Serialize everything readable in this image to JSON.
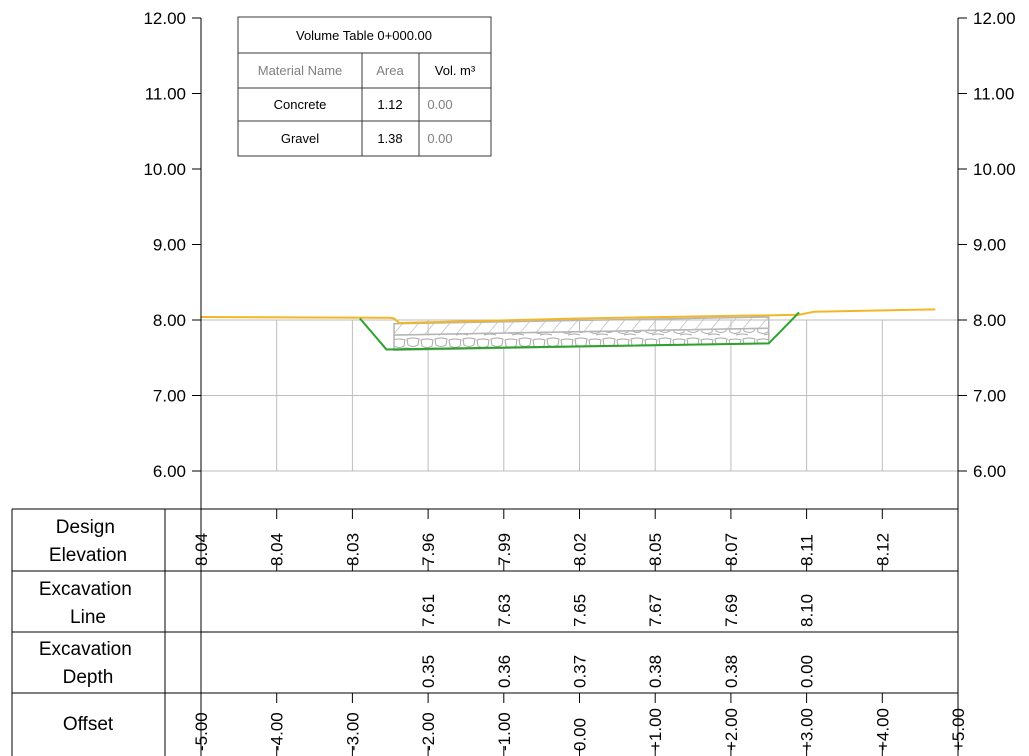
{
  "colors": {
    "design_line": "#f5b625",
    "excavation_line": "#2aa32a",
    "grid": "#bdbdbd",
    "hatch": "#b5b5b5",
    "text": "#000000",
    "muted_text": "#808080"
  },
  "volume_table": {
    "title": "Volume Table 0+000.00",
    "headers": [
      "Material Name",
      "Area",
      "Vol. m³"
    ],
    "rows": [
      {
        "name": "Concrete",
        "area": "1.12",
        "volume": "0.00"
      },
      {
        "name": "Gravel",
        "area": "1.38",
        "volume": "0.00"
      }
    ]
  },
  "bands": [
    {
      "title_line1": "Design",
      "title_line2": "Elevation",
      "values": [
        {
          "offset": -5.0,
          "label": "8.04"
        },
        {
          "offset": -4.0,
          "label": "8.04"
        },
        {
          "offset": -3.0,
          "label": "8.03"
        },
        {
          "offset": -2.0,
          "label": "7.96"
        },
        {
          "offset": -1.0,
          "label": "7.99"
        },
        {
          "offset": 0.0,
          "label": "8.02"
        },
        {
          "offset": 1.0,
          "label": "8.05"
        },
        {
          "offset": 2.0,
          "label": "8.07"
        },
        {
          "offset": 3.0,
          "label": "8.11"
        },
        {
          "offset": 4.0,
          "label": "8.12"
        }
      ]
    },
    {
      "title_line1": "Excavation",
      "title_line2": "Line",
      "values": [
        {
          "offset": -2.0,
          "label": "7.61"
        },
        {
          "offset": -1.0,
          "label": "7.63"
        },
        {
          "offset": 0.0,
          "label": "7.65"
        },
        {
          "offset": 1.0,
          "label": "7.67"
        },
        {
          "offset": 2.0,
          "label": "7.69"
        },
        {
          "offset": 3.0,
          "label": "8.10"
        }
      ]
    },
    {
      "title_line1": "Excavation",
      "title_line2": "Depth",
      "values": [
        {
          "offset": -2.0,
          "label": "0.35"
        },
        {
          "offset": -1.0,
          "label": "0.36"
        },
        {
          "offset": 0.0,
          "label": "0.37"
        },
        {
          "offset": 1.0,
          "label": "0.38"
        },
        {
          "offset": 2.0,
          "label": "0.38"
        },
        {
          "offset": 3.0,
          "label": "0.00"
        }
      ]
    },
    {
      "title_line1": "Offset",
      "title_line2": "",
      "values": [
        {
          "offset": -5.0,
          "label": "-5.00"
        },
        {
          "offset": -4.0,
          "label": "-4.00"
        },
        {
          "offset": -3.0,
          "label": "-3.00"
        },
        {
          "offset": -2.0,
          "label": "-2.00"
        },
        {
          "offset": -1.0,
          "label": "-1.00"
        },
        {
          "offset": 0.0,
          "label": "0.00"
        },
        {
          "offset": 1.0,
          "label": "+1.00"
        },
        {
          "offset": 2.0,
          "label": "+2.00"
        },
        {
          "offset": 3.0,
          "label": "+3.00"
        },
        {
          "offset": 4.0,
          "label": "+4.00"
        },
        {
          "offset": 5.0,
          "label": "+5.00"
        }
      ]
    }
  ],
  "chart_data": {
    "type": "line",
    "xlim": [
      -5.0,
      5.0
    ],
    "ylim": [
      6.0,
      12.0
    ],
    "y_ticks": [
      {
        "value": 12.0,
        "label": "12.00"
      },
      {
        "value": 11.0,
        "label": "11.00"
      },
      {
        "value": 10.0,
        "label": "10.00"
      },
      {
        "value": 9.0,
        "label": "9.00"
      },
      {
        "value": 8.0,
        "label": "8.00"
      },
      {
        "value": 7.0,
        "label": "7.00"
      },
      {
        "value": 6.0,
        "label": "6.00"
      }
    ],
    "x_gridlines": [
      -4.0,
      -3.0,
      -2.0,
      -1.0,
      0.0,
      1.0,
      2.0,
      3.0,
      4.0
    ],
    "y_gridlines": [
      8.0,
      7.0,
      6.0
    ],
    "grid": true,
    "series": [
      {
        "x": [
          -5.0,
          -2.5,
          -2.45,
          -2.38,
          0.0,
          2.3,
          2.4,
          2.9,
          3.1,
          4.7
        ],
        "y": [
          8.04,
          8.03,
          8.02,
          7.96,
          8.02,
          8.06,
          8.06,
          8.07,
          8.11,
          8.14
        ]
      },
      {
        "x": [
          -2.9,
          -2.55,
          2.5,
          2.9
        ],
        "y": [
          8.02,
          7.61,
          7.69,
          8.1
        ]
      }
    ],
    "layers": [
      {
        "label": "Concrete",
        "top_x": [
          -2.45,
          2.5
        ],
        "top_y": [
          7.95,
          8.04
        ],
        "bottom_x": [
          -2.45,
          2.5
        ],
        "bottom_y": [
          7.8,
          7.89
        ]
      },
      {
        "label": "Gravel",
        "top_x": [
          -2.45,
          2.5
        ],
        "top_y": [
          7.8,
          7.89
        ],
        "bottom_x": [
          -2.45,
          2.5
        ],
        "bottom_y": [
          7.6,
          7.69
        ]
      }
    ]
  }
}
